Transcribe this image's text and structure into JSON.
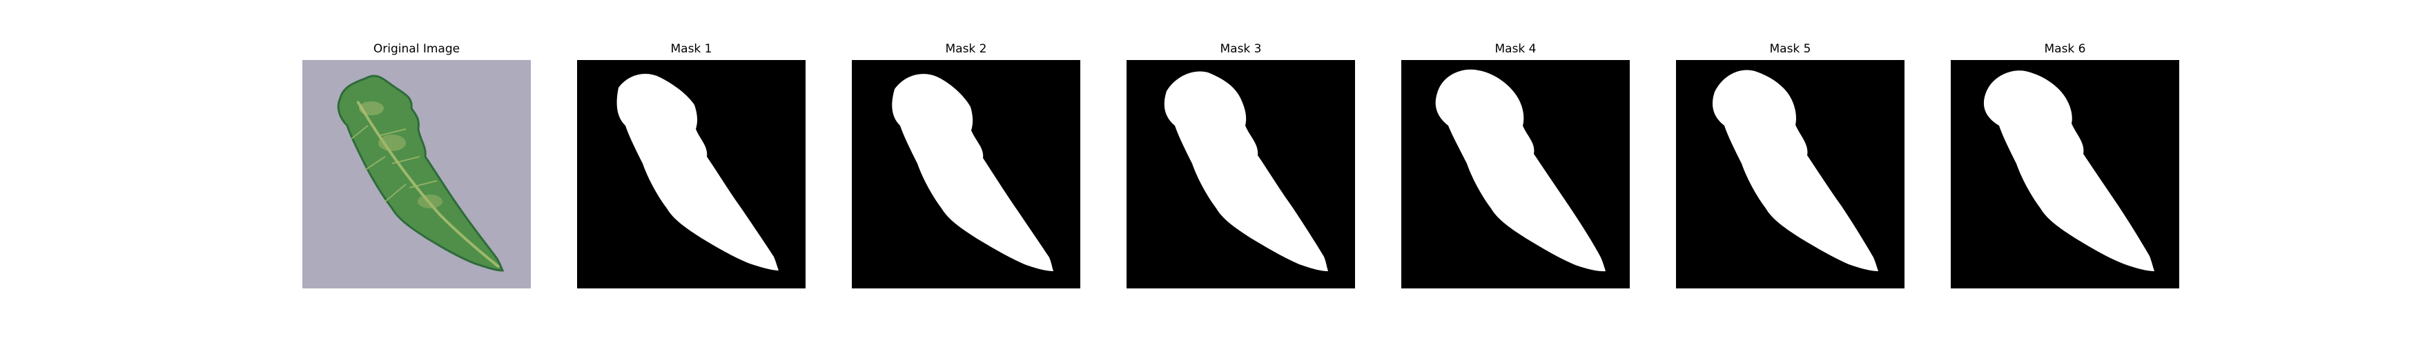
{
  "figure": {
    "panels": [
      {
        "title": "Original Image",
        "kind": "photo"
      },
      {
        "title": "Mask 1",
        "kind": "mask"
      },
      {
        "title": "Mask 2",
        "kind": "mask"
      },
      {
        "title": "Mask 3",
        "kind": "mask"
      },
      {
        "title": "Mask 4",
        "kind": "mask"
      },
      {
        "title": "Mask 5",
        "kind": "mask"
      },
      {
        "title": "Mask 6",
        "kind": "mask"
      }
    ],
    "colors": {
      "mask_background": "#000000",
      "mask_foreground": "#ffffff",
      "photo_background": "#a9a6b8",
      "leaf_dark": "#2f6b3a",
      "leaf_mid": "#4f8f4a",
      "leaf_light": "#9fb86a"
    }
  }
}
